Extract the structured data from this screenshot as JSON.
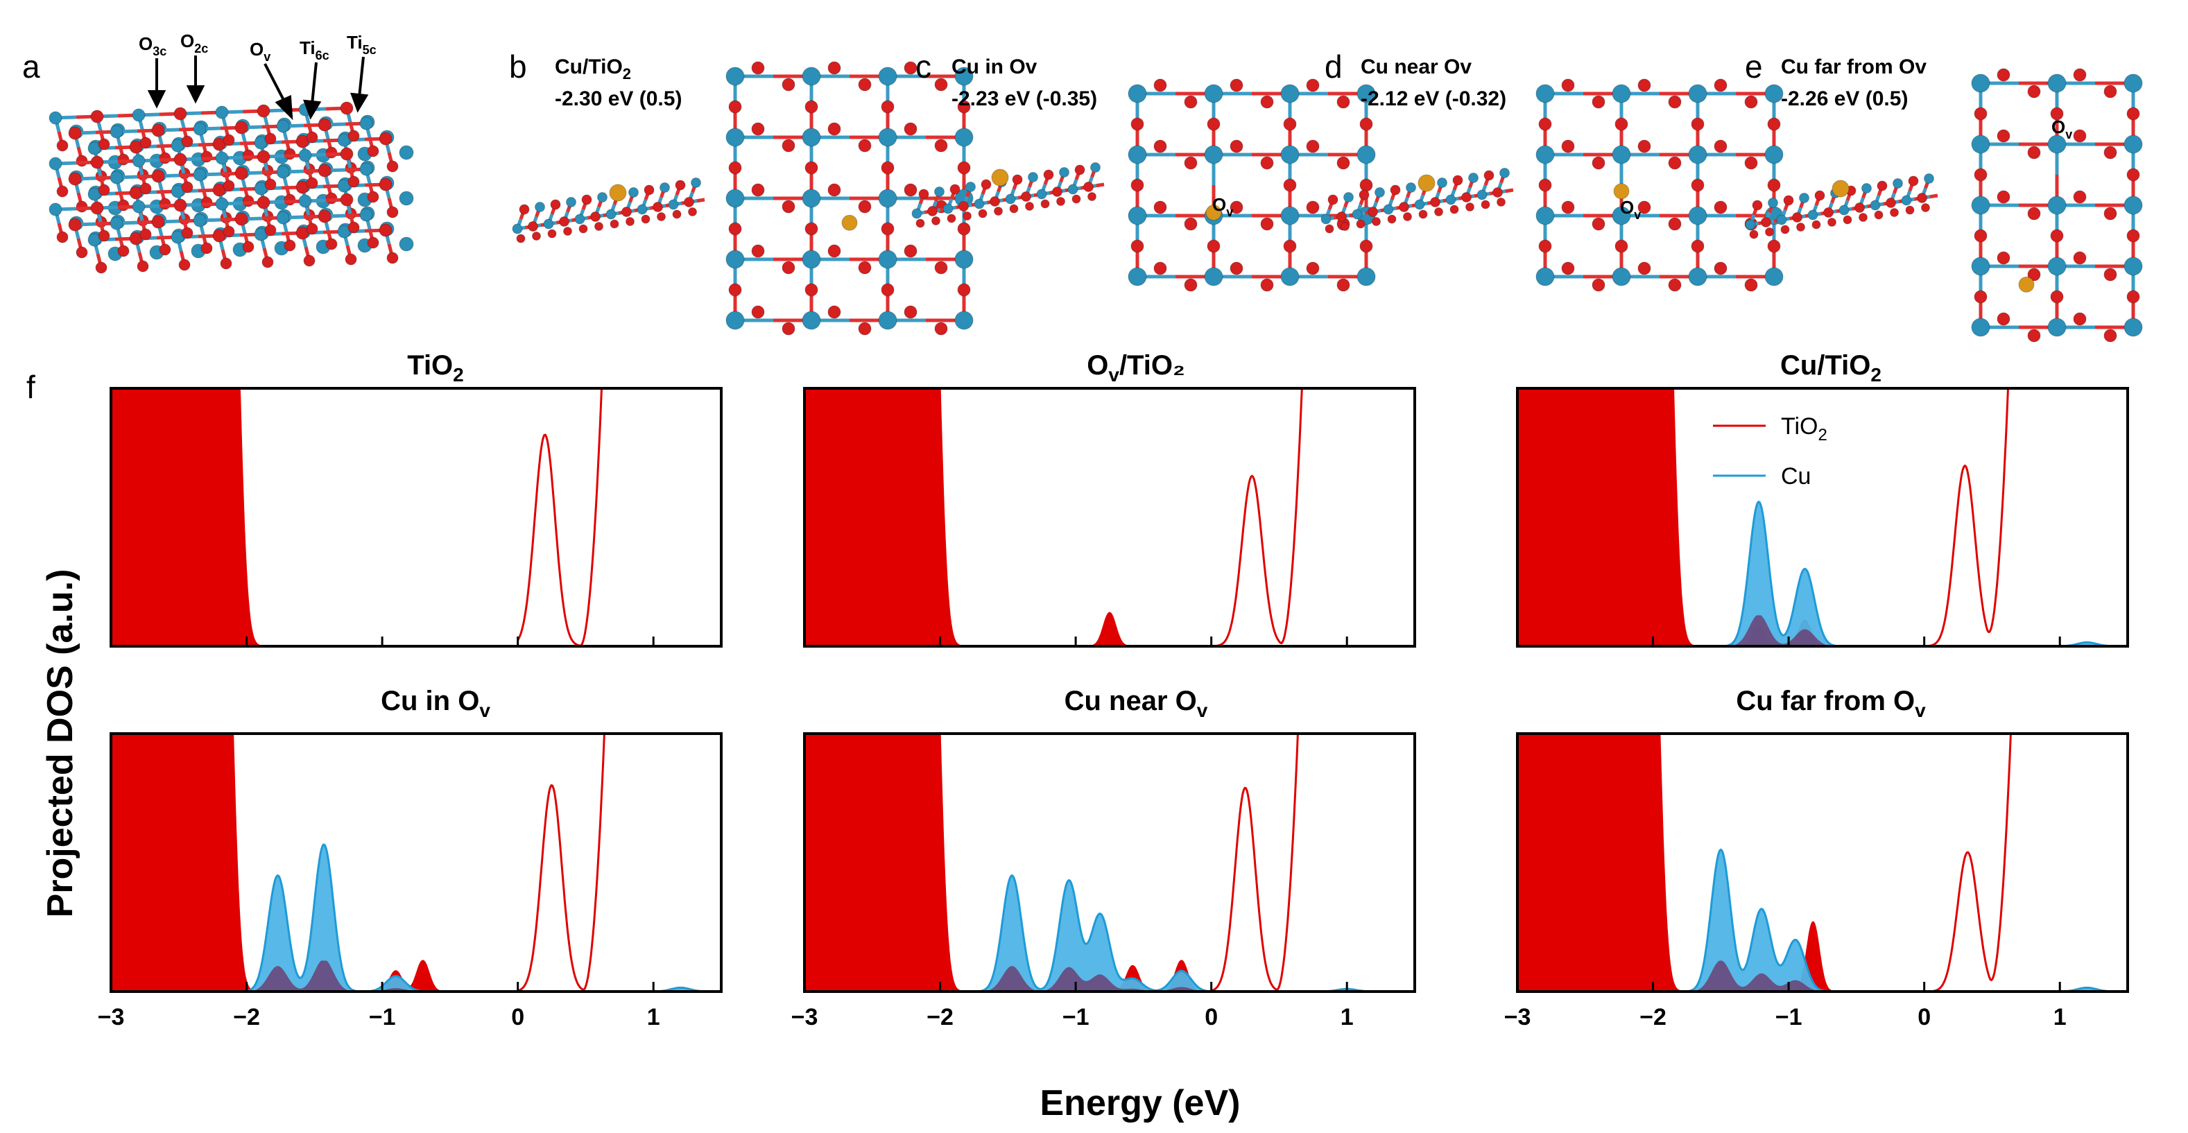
{
  "figure": {
    "panel_labels": [
      "a",
      "b",
      "c",
      "d",
      "e",
      "f"
    ],
    "panel_a": {
      "site_labels": [
        {
          "base": "O",
          "sub": "3c"
        },
        {
          "base": "O",
          "sub": "2c"
        },
        {
          "base": "O",
          "sub": "v"
        },
        {
          "base": "Ti",
          "sub": "6c"
        },
        {
          "base": "Ti",
          "sub": "5c"
        }
      ]
    },
    "structures": [
      {
        "label": "b",
        "name_base": "Cu/TiO",
        "name_sub": "2",
        "energy": "-2.30 eV (0.5)",
        "ov_label": ""
      },
      {
        "label": "c",
        "name_base": "Cu in Ov",
        "name_sub": "",
        "energy": "-2.23 eV (-0.35)",
        "ov_label": "O"
      },
      {
        "label": "d",
        "name_base": "Cu near Ov",
        "name_sub": "",
        "energy": "-2.12 eV (-0.32)",
        "ov_label": "O"
      },
      {
        "label": "e",
        "name_base": "Cu far from Ov",
        "name_sub": "",
        "energy": "-2.26 eV (0.5)",
        "ov_label": "O"
      }
    ],
    "ov_sub": "v"
  },
  "colors": {
    "tio2": "#e00000",
    "cu": "#1e9bd7",
    "cu_fill": "#4fb4e6",
    "overlap": "#6b3a6e",
    "ti_atom": "#2b8fb8",
    "o_atom": "#d61f1f",
    "cu_atom": "#d9951a",
    "bond_ti": "#3a9cc4",
    "bond_o": "#e03030"
  },
  "chart_data": {
    "type": "area",
    "xlabel": "Energy (eV)",
    "ylabel": "Projected DOS (a.u.)",
    "xlim": [
      -3,
      1.5
    ],
    "ylim": [
      0,
      1
    ],
    "xticks": [
      -3,
      -2,
      -1,
      0,
      1
    ],
    "xtick_labels": [
      "−3",
      "−2",
      "−1",
      "0",
      "1"
    ],
    "legend": {
      "position": "top-right of Cu/TiO2 panel",
      "entries": [
        {
          "base": "TiO",
          "sub": "2"
        },
        {
          "base": "Cu",
          "sub": ""
        }
      ]
    },
    "panels": [
      {
        "title_base": "TiO",
        "title_sub": "2",
        "title_prefix": "",
        "series": {
          "tio2_vb_edge": -2.0,
          "tio2_gap_states": [],
          "tio2_cb_peak": {
            "center": 0.2,
            "height": 0.82
          },
          "tio2_cb_rise": 0.6,
          "cu_peaks": []
        }
      },
      {
        "title_base": "O",
        "title_sub": "v",
        "title_prefix": "/TiO₂",
        "series": {
          "tio2_vb_edge": -1.95,
          "tio2_gap_states": [
            {
              "center": -0.75,
              "height": 0.13
            }
          ],
          "tio2_cb_peak": {
            "center": 0.3,
            "height": 0.66
          },
          "tio2_cb_rise": 0.65,
          "cu_peaks": []
        }
      },
      {
        "title_base": "Cu/TiO",
        "title_sub": "2",
        "title_prefix": "",
        "series": {
          "tio2_vb_edge": -1.8,
          "tio2_gap_states": [
            {
              "center": -1.22,
              "height": 0.08
            },
            {
              "center": -0.88,
              "height": 0.1
            }
          ],
          "tio2_cb_peak": {
            "center": 0.3,
            "height": 0.7
          },
          "tio2_cb_rise": 0.6,
          "cu_peaks": [
            {
              "center": -1.22,
              "height": 0.56
            },
            {
              "center": -0.88,
              "height": 0.3
            },
            {
              "center": 1.2,
              "height": 0.015
            }
          ]
        }
      },
      {
        "title_base": "Cu in O",
        "title_sub": "v",
        "title_prefix": "",
        "series": {
          "tio2_vb_edge": -2.05,
          "tio2_gap_states": [
            {
              "center": -0.9,
              "height": 0.08
            },
            {
              "center": -0.7,
              "height": 0.12
            }
          ],
          "tio2_cb_peak": {
            "center": 0.25,
            "height": 0.8
          },
          "tio2_cb_rise": 0.62,
          "cu_peaks": [
            {
              "center": -1.77,
              "height": 0.45
            },
            {
              "center": -1.43,
              "height": 0.57
            },
            {
              "center": -0.9,
              "height": 0.06
            },
            {
              "center": 1.2,
              "height": 0.015
            }
          ]
        }
      },
      {
        "title_base": "Cu near O",
        "title_sub": "v",
        "title_prefix": "",
        "series": {
          "tio2_vb_edge": -1.95,
          "tio2_gap_states": [
            {
              "center": -0.58,
              "height": 0.1
            },
            {
              "center": -0.22,
              "height": 0.12
            }
          ],
          "tio2_cb_peak": {
            "center": 0.25,
            "height": 0.79
          },
          "tio2_cb_rise": 0.62,
          "cu_peaks": [
            {
              "center": -1.47,
              "height": 0.45
            },
            {
              "center": -1.05,
              "height": 0.43
            },
            {
              "center": -0.82,
              "height": 0.3
            },
            {
              "center": -0.58,
              "height": 0.05
            },
            {
              "center": -0.22,
              "height": 0.08
            },
            {
              "center": 1.0,
              "height": 0.01
            }
          ]
        }
      },
      {
        "title_base": "Cu far from O",
        "title_sub": "v",
        "title_prefix": "",
        "series": {
          "tio2_vb_edge": -1.9,
          "tio2_gap_states": [
            {
              "center": -0.82,
              "height": 0.27
            }
          ],
          "tio2_cb_peak": {
            "center": 0.32,
            "height": 0.54
          },
          "tio2_cb_rise": 0.62,
          "cu_peaks": [
            {
              "center": -1.5,
              "height": 0.55
            },
            {
              "center": -1.2,
              "height": 0.32
            },
            {
              "center": -0.95,
              "height": 0.2
            },
            {
              "center": 1.2,
              "height": 0.015
            }
          ]
        }
      }
    ]
  }
}
